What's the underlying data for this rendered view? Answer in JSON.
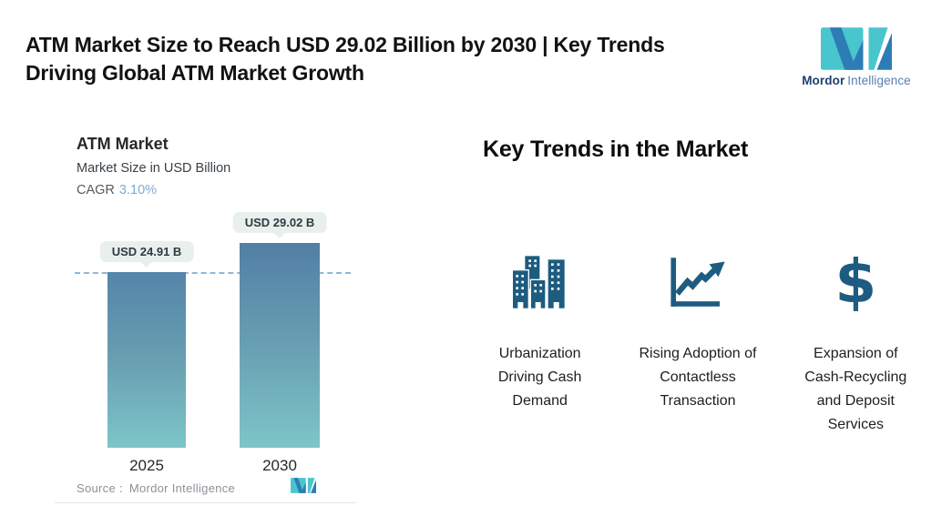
{
  "page": {
    "title_line1": "ATM Market Size to Reach USD 29.02 Billion by 2030 | Key Trends",
    "title_line2": "Driving Global ATM Market Growth"
  },
  "brand": {
    "name_bold": "Mordor",
    "name_light": "Intelligence"
  },
  "chart": {
    "title": "ATM Market",
    "subtitle": "Market Size in USD Billion",
    "cagr_label": "CAGR",
    "cagr_value": "3.10%",
    "source_label": "Source :",
    "source_value": "Mordor Intelligence",
    "bars": [
      {
        "year": "2025",
        "label": "USD 24.91 B",
        "value": 24.91
      },
      {
        "year": "2030",
        "label": "USD 29.02 B",
        "value": 29.02
      }
    ]
  },
  "chart_data": {
    "type": "bar",
    "title": "ATM Market",
    "ylabel": "Market Size in USD Billion",
    "categories": [
      "2025",
      "2030"
    ],
    "values": [
      24.91,
      29.02
    ],
    "data_labels": [
      "USD 24.91 B",
      "USD 29.02 B"
    ],
    "cagr": "3.10%",
    "reference_line": 24.91,
    "ylim": [
      0,
      29.02
    ],
    "grid": false,
    "legend": false
  },
  "trends": {
    "heading": "Key Trends in the Market",
    "items": [
      {
        "icon": "buildings-icon",
        "label": "Urbanization Driving Cash Demand"
      },
      {
        "icon": "growth-chart-icon",
        "label": "Rising Adoption of Contactless Transaction"
      },
      {
        "icon": "dollar-icon",
        "label": "Expansion of Cash-Recycling and Deposit Services",
        "icon_char": "$"
      }
    ]
  },
  "colors": {
    "icon_blue": "#1d5c80",
    "bar_top": "#5585a9",
    "bar_bottom": "#7dc5c8",
    "dash_line": "#8cb8d9",
    "pill_bg": "#e9efec",
    "cagr_accent": "#7fabd6",
    "logo_teal": "#49c6cd",
    "logo_blue": "#2d7cb5"
  }
}
